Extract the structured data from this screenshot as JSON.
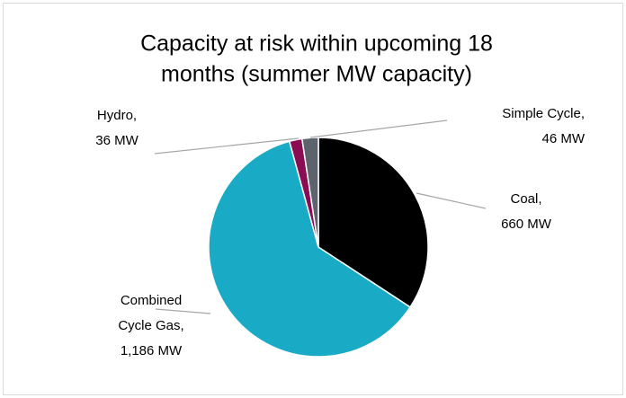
{
  "chart_data": {
    "type": "pie",
    "title_lines": [
      "Capacity at risk within upcoming 18",
      "months (summer MW capacity)"
    ],
    "values": [
      660,
      1186,
      36,
      46
    ],
    "labels": [
      [
        "Coal,",
        "660 MW"
      ],
      [
        "Combined",
        "Cycle Gas,",
        "1,186 MW"
      ],
      [
        "Hydro,",
        "36 MW"
      ],
      [
        "Simple Cycle,",
        "46 MW"
      ]
    ],
    "colors": [
      "#000000",
      "#19abc6",
      "#8a0c52",
      "#5c636d"
    ],
    "start_angle": 0,
    "direction": "clockwise"
  }
}
